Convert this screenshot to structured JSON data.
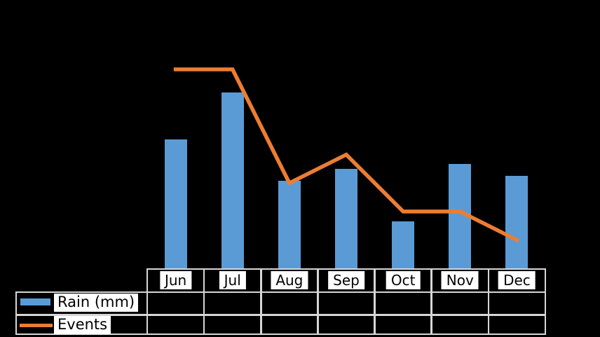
{
  "chart_data": {
    "type": "combo",
    "title": "",
    "xlabel": "",
    "ylabel": "",
    "categories": [
      "Jun",
      "Jul",
      "Aug",
      "Sep",
      "Oct",
      "Nov",
      "Dec"
    ],
    "series": [
      {
        "name": "Rain (mm)",
        "type": "bar",
        "color": "#5B9BD5",
        "values": [
          110,
          150,
          75,
          85,
          40,
          89,
          79
        ]
      },
      {
        "name": "Events",
        "type": "line",
        "color": "#ED7D31",
        "values": [
          7,
          7,
          3,
          4,
          2,
          2,
          1
        ]
      }
    ],
    "axes_visible": false,
    "gridlines": false,
    "legend_position": "bottom-left",
    "background_color": "#000000",
    "data_table": {
      "shown": true,
      "grid_color": "#d6d6d6",
      "cell_background": "#000000",
      "label_chip_background": "#ffffff",
      "label_text_color": "#000000",
      "header": [
        "Jun",
        "Jul",
        "Aug",
        "Sep",
        "Oct",
        "Nov",
        "Dec"
      ],
      "rows": [
        {
          "label": "Rain (mm)",
          "cells": [
            "",
            "",
            "",
            "",
            "",
            "",
            ""
          ]
        },
        {
          "label": "Events",
          "cells": [
            "",
            "",
            "",
            "",
            "",
            "",
            ""
          ]
        }
      ]
    }
  }
}
